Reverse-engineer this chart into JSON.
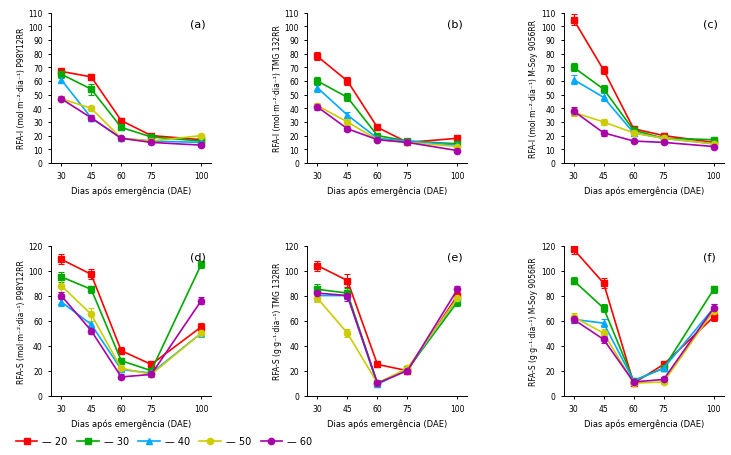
{
  "x": [
    30,
    45,
    60,
    75,
    100
  ],
  "colors": {
    "20": "#FF0000",
    "30": "#00AA00",
    "40": "#00AAFF",
    "50": "#CCCC00",
    "60": "#AA00AA"
  },
  "markers": {
    "20": "s",
    "30": "s",
    "40": "^",
    "50": "o",
    "60": "o"
  },
  "panel_a": {
    "title": "(a)",
    "ylabel": "RFA-I (mol·m⁻²·dia⁻¹) P98Y12RR",
    "ylim": [
      0,
      110
    ],
    "yticks": [
      0,
      10,
      20,
      30,
      40,
      50,
      60,
      70,
      80,
      90,
      100,
      110
    ],
    "data": {
      "20": [
        67,
        63,
        31,
        20,
        17
      ],
      "30": [
        65,
        54,
        26,
        19,
        16
      ],
      "40": [
        61,
        33,
        18,
        16,
        15
      ],
      "50": [
        47,
        40,
        18,
        16,
        20
      ],
      "60": [
        47,
        33,
        18,
        15,
        13
      ]
    },
    "err": {
      "20": [
        2,
        2,
        2,
        1,
        1
      ],
      "30": [
        3,
        4,
        2,
        1,
        1
      ],
      "40": [
        2,
        2,
        1,
        1,
        1
      ],
      "50": [
        2,
        2,
        1,
        1,
        1
      ],
      "60": [
        2,
        2,
        1,
        1,
        1
      ]
    }
  },
  "panel_b": {
    "title": "(b)",
    "ylabel": "RFA-I (mol·m⁻²·dia⁻¹) TMG 132RR",
    "ylim": [
      0,
      110
    ],
    "yticks": [
      0,
      10,
      20,
      30,
      40,
      50,
      60,
      70,
      80,
      90,
      100,
      110
    ],
    "data": {
      "20": [
        78,
        60,
        26,
        15,
        18
      ],
      "30": [
        60,
        48,
        20,
        16,
        14
      ],
      "40": [
        55,
        35,
        18,
        16,
        13
      ],
      "50": [
        42,
        30,
        17,
        15,
        12
      ],
      "60": [
        41,
        25,
        17,
        15,
        9
      ]
    },
    "err": {
      "20": [
        3,
        3,
        2,
        1,
        1
      ],
      "30": [
        3,
        3,
        1,
        1,
        1
      ],
      "40": [
        3,
        2,
        1,
        1,
        1
      ],
      "50": [
        2,
        2,
        1,
        1,
        1
      ],
      "60": [
        2,
        2,
        1,
        1,
        1
      ]
    }
  },
  "panel_c": {
    "title": "(c)",
    "ylabel": "RFA-I (mol·m⁻²·dia⁻¹) M-Soy 9056RR",
    "ylim": [
      0,
      110
    ],
    "yticks": [
      0,
      10,
      20,
      30,
      40,
      50,
      60,
      70,
      80,
      90,
      100,
      110
    ],
    "data": {
      "20": [
        105,
        68,
        25,
        20,
        15
      ],
      "30": [
        70,
        54,
        24,
        18,
        17
      ],
      "40": [
        61,
        48,
        22,
        18,
        14
      ],
      "50": [
        37,
        30,
        22,
        18,
        14
      ],
      "60": [
        38,
        22,
        16,
        15,
        12
      ]
    },
    "err": {
      "20": [
        4,
        3,
        2,
        2,
        1
      ],
      "30": [
        3,
        3,
        2,
        1,
        1
      ],
      "40": [
        3,
        3,
        2,
        1,
        1
      ],
      "50": [
        3,
        2,
        2,
        1,
        1
      ],
      "60": [
        3,
        2,
        1,
        1,
        1
      ]
    }
  },
  "panel_d": {
    "title": "(d)",
    "ylabel": "RFA-S (mol·m⁻²·dia⁻¹) P98Y12RR",
    "ylim": [
      0,
      120
    ],
    "yticks": [
      0,
      20,
      40,
      60,
      80,
      100,
      120
    ],
    "data": {
      "20": [
        109,
        97,
        36,
        25,
        55
      ],
      "30": [
        95,
        85,
        28,
        20,
        105
      ],
      "40": [
        75,
        57,
        21,
        18,
        50
      ],
      "50": [
        88,
        65,
        22,
        17,
        50
      ],
      "60": [
        80,
        52,
        15,
        17,
        76
      ]
    },
    "err": {
      "20": [
        4,
        4,
        3,
        2,
        3
      ],
      "30": [
        4,
        3,
        2,
        2,
        3
      ],
      "40": [
        3,
        3,
        2,
        2,
        3
      ],
      "50": [
        5,
        5,
        2,
        2,
        2
      ],
      "60": [
        3,
        3,
        2,
        2,
        3
      ]
    }
  },
  "panel_e": {
    "title": "(e)",
    "ylabel": "RFA-S (g·g⁻¹·dia⁻¹) TMG 132RR",
    "ylim": [
      0,
      120
    ],
    "yticks": [
      0,
      20,
      40,
      60,
      80,
      100,
      120
    ],
    "data": {
      "20": [
        104,
        92,
        25,
        20,
        80
      ],
      "30": [
        85,
        82,
        10,
        21,
        75
      ],
      "40": [
        80,
        80,
        9,
        21,
        78
      ],
      "50": [
        78,
        50,
        10,
        22,
        78
      ],
      "60": [
        82,
        80,
        10,
        20,
        85
      ]
    },
    "err": {
      "20": [
        4,
        5,
        2,
        2,
        3
      ],
      "30": [
        4,
        4,
        2,
        2,
        3
      ],
      "40": [
        4,
        3,
        2,
        2,
        3
      ],
      "50": [
        3,
        3,
        2,
        2,
        3
      ],
      "60": [
        4,
        4,
        2,
        2,
        3
      ]
    }
  },
  "panel_f": {
    "title": "(f)",
    "ylabel": "RFA-S (g·g⁻¹·dia⁻¹) M-Soy 9056RR",
    "ylim": [
      0,
      120
    ],
    "yticks": [
      0,
      20,
      40,
      60,
      80,
      100,
      120
    ],
    "data": {
      "20": [
        117,
        90,
        10,
        25,
        63
      ],
      "30": [
        92,
        70,
        12,
        22,
        85
      ],
      "40": [
        61,
        58,
        12,
        22,
        70
      ],
      "50": [
        63,
        50,
        10,
        11,
        68
      ],
      "60": [
        61,
        45,
        11,
        13,
        70
      ]
    },
    "err": {
      "20": [
        4,
        4,
        2,
        2,
        3
      ],
      "30": [
        3,
        3,
        2,
        2,
        3
      ],
      "40": [
        3,
        3,
        2,
        2,
        3
      ],
      "50": [
        3,
        3,
        2,
        2,
        2
      ],
      "60": [
        3,
        3,
        2,
        2,
        3
      ]
    }
  },
  "xlabel": "Dias após emergência (DAE)",
  "legend_labels": [
    "20",
    "30",
    "40",
    "50",
    "60"
  ],
  "background_color": "#FFFFFF",
  "linewidth": 1.2,
  "markersize": 4.5
}
